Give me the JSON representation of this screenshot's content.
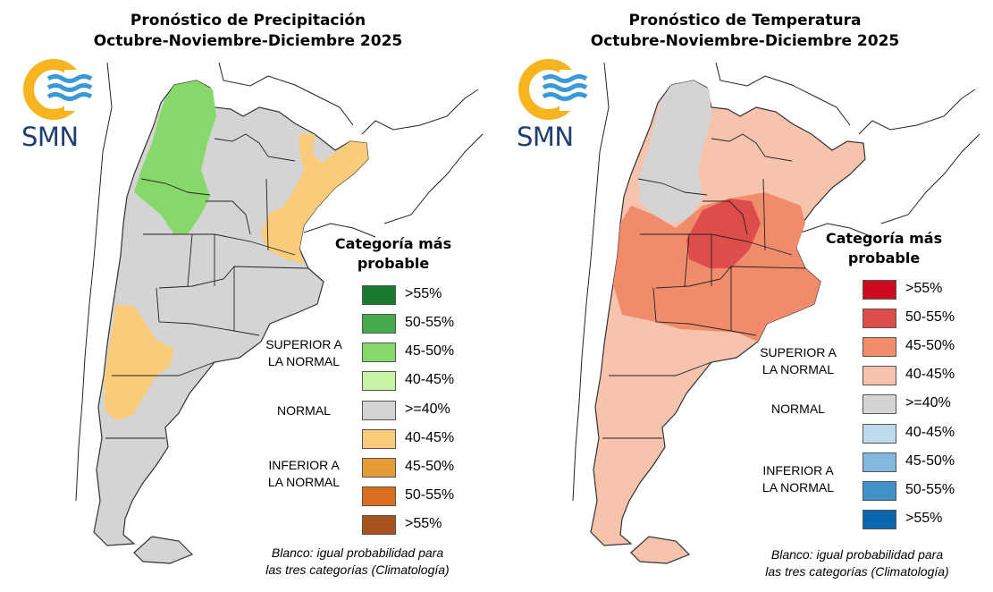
{
  "logo": {
    "text": "SMN"
  },
  "panels": [
    {
      "id": "precip",
      "title_line1": "Pronóstico de Precipitación",
      "title_line2": "Octubre-Noviembre-Diciembre 2025",
      "legend_title_line1": "Categoría más",
      "legend_title_line2": "probable",
      "categories": {
        "superior_line1": "SUPERIOR A",
        "superior_line2": "LA NORMAL",
        "normal": "NORMAL",
        "inferior_line1": "INFERIOR A",
        "inferior_line2": "LA NORMAL"
      },
      "legend": [
        {
          "label": ">55%",
          "color": "#1a7a30"
        },
        {
          "label": "50-55%",
          "color": "#45ab4c"
        },
        {
          "label": "45-50%",
          "color": "#86d86a"
        },
        {
          "label": "40-45%",
          "color": "#c8f2a4"
        },
        {
          "label": ">=40%",
          "color": "#d4d4d4"
        },
        {
          "label": "40-45%",
          "color": "#f9cc7c"
        },
        {
          "label": "45-50%",
          "color": "#e59b36"
        },
        {
          "label": "50-55%",
          "color": "#d86e1e"
        },
        {
          "label": ">55%",
          "color": "#a9531f"
        }
      ],
      "note_line1": "Blanco: igual probabilidad para",
      "note_line2": "las tres categorías (Climatología)"
    },
    {
      "id": "temp",
      "title_line1": "Pronóstico de Temperatura",
      "title_line2": "Octubre-Noviembre-Diciembre 2025",
      "legend_title_line1": "Categoría más",
      "legend_title_line2": "probable",
      "categories": {
        "superior_line1": "SUPERIOR A",
        "superior_line2": "LA NORMAL",
        "normal": "NORMAL",
        "inferior_line1": "INFERIOR A",
        "inferior_line2": "LA NORMAL"
      },
      "legend": [
        {
          "label": ">55%",
          "color": "#cc0a20"
        },
        {
          "label": "50-55%",
          "color": "#de4d4a"
        },
        {
          "label": "45-50%",
          "color": "#f08c6c"
        },
        {
          "label": "40-45%",
          "color": "#f6c3ac"
        },
        {
          "label": ">=40%",
          "color": "#d4d4d4"
        },
        {
          "label": "40-45%",
          "color": "#bcdcee"
        },
        {
          "label": "45-50%",
          "color": "#83b9de"
        },
        {
          "label": "50-55%",
          "color": "#4291c9"
        },
        {
          "label": ">55%",
          "color": "#0c66ae"
        }
      ],
      "note_line1": "Blanco: igual probabilidad para",
      "note_line2": "las tres categorías (Climatología)"
    }
  ]
}
